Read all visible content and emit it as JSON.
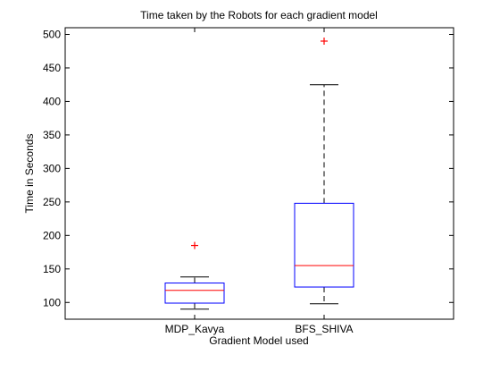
{
  "chart_data": {
    "type": "box",
    "title": "Time taken by the Robots for each gradient model",
    "xlabel": "Gradient Model used",
    "ylabel": "Time in Seconds",
    "ylim": [
      75,
      510
    ],
    "yticks": [
      100,
      150,
      200,
      250,
      300,
      350,
      400,
      450,
      500
    ],
    "categories": [
      "MDP_Kavya",
      "BFS_SHIVA"
    ],
    "boxes": [
      {
        "category": "MDP_Kavya",
        "whisker_low": 90,
        "q1": 99,
        "median": 118,
        "q3": 129,
        "whisker_high": 138,
        "outliers": [
          185
        ]
      },
      {
        "category": "BFS_SHIVA",
        "whisker_low": 98,
        "q1": 123,
        "median": 155,
        "q3": 248,
        "whisker_high": 425,
        "outliers": [
          490
        ]
      }
    ],
    "colors": {
      "box": "#0000ff",
      "median": "#ff0000",
      "whisker": "#000000",
      "outlier": "#ff0000",
      "axes": "#000000"
    },
    "grid": false
  }
}
